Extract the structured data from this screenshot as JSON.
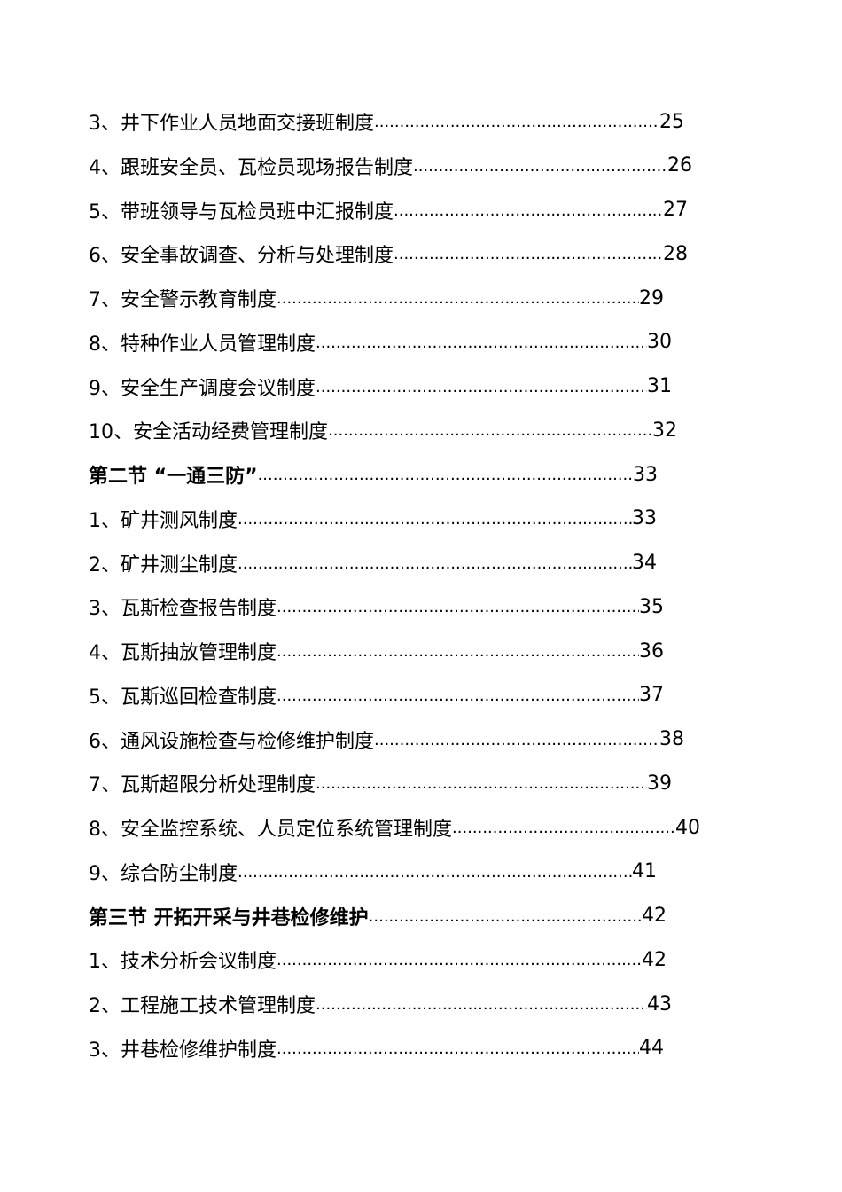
{
  "toc": [
    {
      "title": "3、井下作业人员地面交接班制度",
      "page": "25",
      "section": false
    },
    {
      "title": "4、跟班安全员、瓦检员现场报告制度",
      "page": "26",
      "section": false
    },
    {
      "title": "5、带班领导与瓦检员班中汇报制度",
      "page": "27",
      "section": false
    },
    {
      "title": "6、安全事故调查、分析与处理制度",
      "page": "28",
      "section": false
    },
    {
      "title": "7、安全警示教育制度",
      "page": "29",
      "section": false
    },
    {
      "title": "8、特种作业人员管理制度",
      "page": "30",
      "section": false
    },
    {
      "title": "9、安全生产调度会议制度",
      "page": "31",
      "section": false
    },
    {
      "title": "10、安全活动经费管理制度 ",
      "page": "32",
      "section": false
    },
    {
      "title": "第二节 “一通三防” ",
      "page": "33",
      "section": true
    },
    {
      "title": "1、矿井测风制度",
      "page": "33",
      "section": false
    },
    {
      "title": "2、矿井测尘制度",
      "page": "34",
      "section": false
    },
    {
      "title": "3、瓦斯检查报告制度",
      "page": "35",
      "section": false
    },
    {
      "title": "4、瓦斯抽放管理制度",
      "page": "36",
      "section": false
    },
    {
      "title": "5、瓦斯巡回检查制度",
      "page": "37",
      "section": false
    },
    {
      "title": "6、通风设施检查与检修维护制度",
      "page": "38",
      "section": false
    },
    {
      "title": "7、瓦斯超限分析处理制度",
      "page": "39",
      "section": false
    },
    {
      "title": "8、安全监控系统、人员定位系统管理制度",
      "page": "40",
      "section": false
    },
    {
      "title": "9、综合防尘制度",
      "page": "41",
      "section": false
    },
    {
      "title": "第三节  开拓开采与井巷检修维护",
      "page": "42",
      "section": true
    },
    {
      "title": "1、技术分析会议制度",
      "page": "42",
      "section": false
    },
    {
      "title": "2、工程施工技术管理制度",
      "page": "43",
      "section": false
    },
    {
      "title": "3、井巷检修维护制度",
      "page": "44",
      "section": false
    }
  ]
}
